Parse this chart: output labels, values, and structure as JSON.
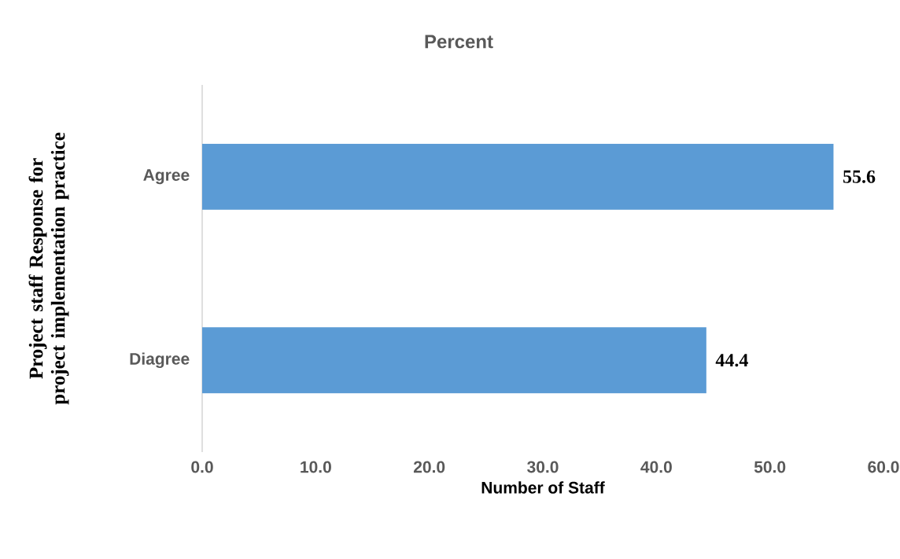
{
  "chart_data": {
    "type": "bar",
    "orientation": "horizontal",
    "title": "Percent",
    "xlabel": "Number of Staff",
    "ylabel": "Project staff Response for project implementation practice",
    "categories": [
      "Agree",
      "Diagree"
    ],
    "values": [
      55.6,
      44.4
    ],
    "color": "#5b9bd5",
    "xlim": [
      0,
      60
    ],
    "xticks": [
      {
        "value": 0,
        "label": "0.0"
      },
      {
        "value": 10,
        "label": "10.0"
      },
      {
        "value": 20,
        "label": "20.0"
      },
      {
        "value": 30,
        "label": "30.0"
      },
      {
        "value": 40,
        "label": "40.0"
      },
      {
        "value": 50,
        "label": "50.0"
      },
      {
        "value": 60,
        "label": "60.0"
      }
    ],
    "data_labels": true,
    "grid": false
  }
}
